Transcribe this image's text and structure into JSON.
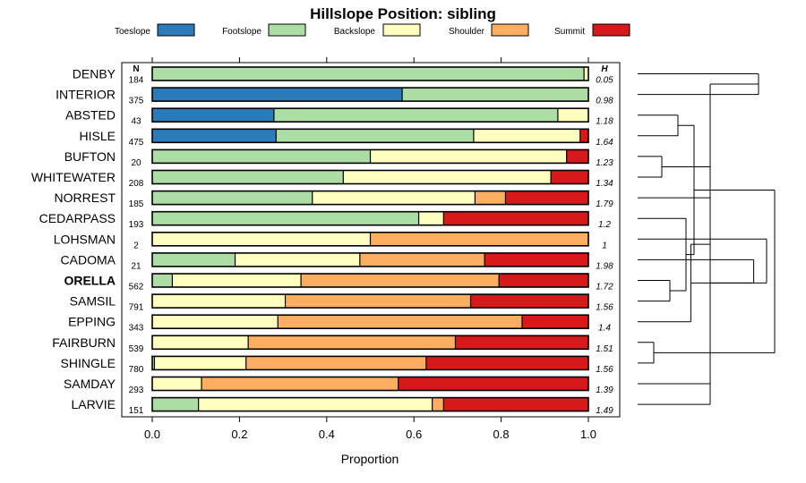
{
  "chart_data": {
    "type": "bar",
    "stacked": true,
    "orientation": "horizontal",
    "title": "Hillslope Position: sibling",
    "xlabel": "Proportion",
    "xlim": [
      0,
      1
    ],
    "xticks": [
      0,
      0.2,
      0.4,
      0.6,
      0.8,
      1
    ],
    "xtick_labels": [
      "0.0",
      "0.2",
      "0.4",
      "0.6",
      "0.8",
      "1.0"
    ],
    "n_header": "N",
    "h_header": "H",
    "series": [
      {
        "name": "Toeslope",
        "color": "#2b7bba"
      },
      {
        "name": "Footslope",
        "color": "#abdda4"
      },
      {
        "name": "Backslope",
        "color": "#ffffbf"
      },
      {
        "name": "Shoulder",
        "color": "#fdae61"
      },
      {
        "name": "Summit",
        "color": "#d7191c"
      }
    ],
    "highlight_row": "ORELLA",
    "rows": [
      {
        "name": "DENBY",
        "n": "184",
        "h": "0.05",
        "values": [
          0,
          0.99,
          0.01,
          0,
          0
        ]
      },
      {
        "name": "INTERIOR",
        "n": "375",
        "h": "0.98",
        "values": [
          0.573,
          0.427,
          0,
          0,
          0
        ]
      },
      {
        "name": "ABSTED",
        "n": "43",
        "h": "1.18",
        "values": [
          0.279,
          0.651,
          0.07,
          0,
          0
        ]
      },
      {
        "name": "HISLE",
        "n": "475",
        "h": "1.64",
        "values": [
          0.284,
          0.453,
          0.244,
          0,
          0.019
        ]
      },
      {
        "name": "BUFTON",
        "n": "20",
        "h": "1.23",
        "values": [
          0,
          0.5,
          0.45,
          0,
          0.05
        ]
      },
      {
        "name": "WHITEWATER",
        "n": "208",
        "h": "1.34",
        "values": [
          0,
          0.438,
          0.476,
          0,
          0.086
        ]
      },
      {
        "name": "NORREST",
        "n": "185",
        "h": "1.79",
        "values": [
          0,
          0.367,
          0.373,
          0.07,
          0.19
        ]
      },
      {
        "name": "CEDARPASS",
        "n": "193",
        "h": "1.2",
        "values": [
          0,
          0.611,
          0.057,
          0,
          0.332
        ]
      },
      {
        "name": "LOHSMAN",
        "n": "2",
        "h": "1",
        "values": [
          0,
          0,
          0.5,
          0.5,
          0
        ]
      },
      {
        "name": "CADOMA",
        "n": "21",
        "h": "1.98",
        "values": [
          0,
          0.19,
          0.286,
          0.286,
          0.238
        ]
      },
      {
        "name": "ORELLA",
        "n": "562",
        "h": "1.72",
        "values": [
          0,
          0.046,
          0.295,
          0.454,
          0.205
        ]
      },
      {
        "name": "SAMSIL",
        "n": "791",
        "h": "1.56",
        "values": [
          0,
          0,
          0.305,
          0.425,
          0.27
        ]
      },
      {
        "name": "EPPING",
        "n": "343",
        "h": "1.4",
        "values": [
          0,
          0,
          0.288,
          0.56,
          0.152
        ]
      },
      {
        "name": "FAIRBURN",
        "n": "539",
        "h": "1.51",
        "values": [
          0,
          0,
          0.22,
          0.475,
          0.305
        ]
      },
      {
        "name": "SHINGLE",
        "n": "780",
        "h": "1.56",
        "values": [
          0,
          0.005,
          0.21,
          0.413,
          0.372
        ]
      },
      {
        "name": "SAMDAY",
        "n": "293",
        "h": "1.39",
        "values": [
          0,
          0,
          0.113,
          0.451,
          0.436
        ]
      },
      {
        "name": "LARVIE",
        "n": "151",
        "h": "1.49",
        "values": [
          0,
          0.106,
          0.536,
          0.026,
          0.332
        ]
      }
    ],
    "dendrogram": {
      "leaf_order": [
        "DENBY",
        "INTERIOR",
        "ABSTED",
        "HISLE",
        "BUFTON",
        "WHITEWATER",
        "NORREST",
        "CEDARPASS",
        "LOHSMAN",
        "CADOMA",
        "ORELLA",
        "SAMSIL",
        "EPPING",
        "FAIRBURN",
        "SHINGLE",
        "SAMDAY",
        "LARVIE"
      ],
      "merges": [
        [
          0,
          1,
          0.75
        ],
        [
          2,
          3,
          0.25
        ],
        [
          4,
          5,
          0.15
        ],
        [
          10,
          11,
          0.2
        ],
        [
          13,
          14,
          0.1
        ],
        [
          17,
          16,
          0.45
        ],
        [
          19,
          6,
          0.45
        ],
        [
          20,
          7,
          0.3
        ],
        [
          22,
          12,
          0.33
        ],
        [
          23,
          15,
          0.45
        ],
        [
          18,
          24,
          0.35
        ],
        [
          25,
          9,
          0.72
        ],
        [
          26,
          8,
          0.8
        ],
        [
          21,
          27,
          0.85
        ],
        [
          -3,
          -4,
          0.0
        ]
      ]
    }
  }
}
